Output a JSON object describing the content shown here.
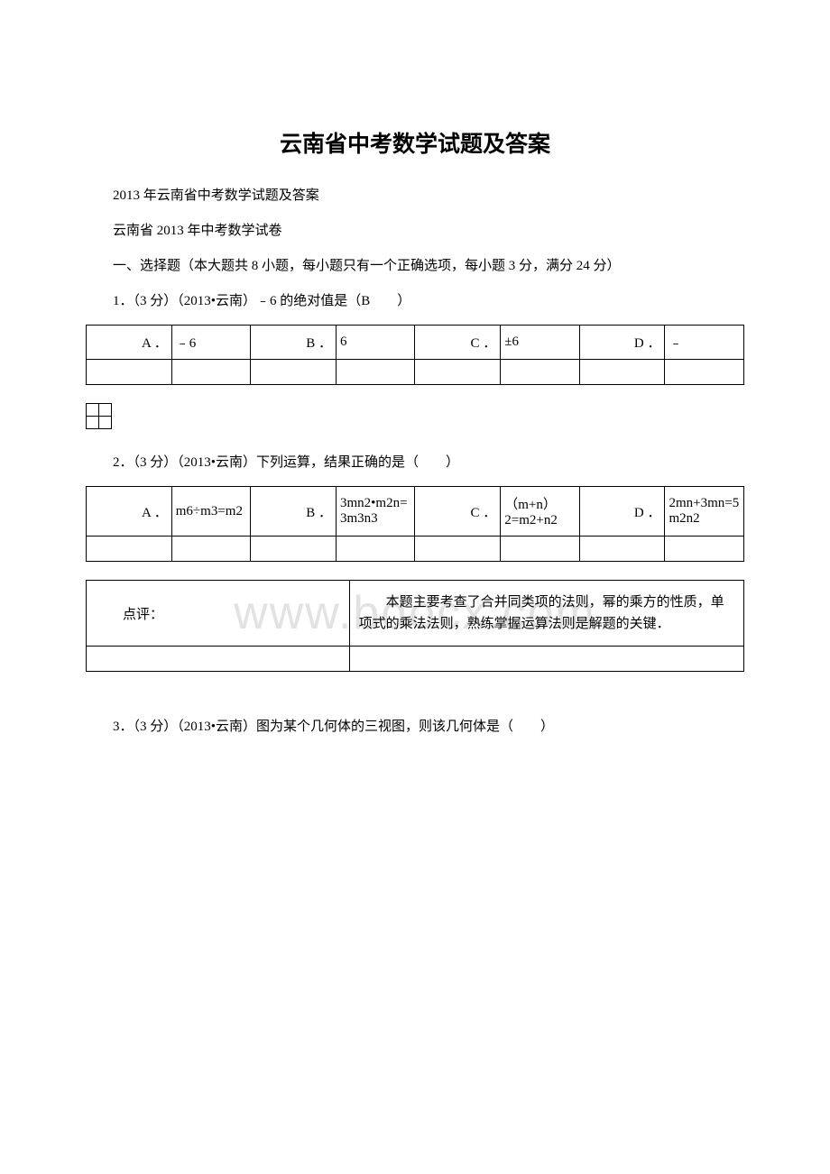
{
  "colors": {
    "text": "#000000",
    "background": "#ffffff",
    "border": "#000000",
    "watermark": "#e2e2e2"
  },
  "typography": {
    "title_fontsize": 25,
    "body_fontsize": 15,
    "watermark_fontsize": 52,
    "font_family": "SimSun"
  },
  "watermark": "www.bdocx.com",
  "title": "云南省中考数学试题及答案",
  "p1": "2013 年云南省中考数学试题及答案",
  "p2": "云南省 2013 年中考数学试卷",
  "p3": "一、选择题（本大题共 8 小题，每小题只有一个正确选项，每小题 3 分，满分 24 分）",
  "q1": "1．（3 分）（2013•云南）﹣6 的绝对值是（B　　）",
  "table1": {
    "labels": [
      "A ．",
      "B ．",
      "C ．",
      "D ．"
    ],
    "values": [
      "﹣6",
      "6",
      "±6",
      "﹣"
    ]
  },
  "q2": "2．（3 分）（2013•云南）下列运算，结果正确的是（　　）",
  "table2": {
    "labels": [
      "A ．",
      "B ．",
      "C ．",
      "D ．"
    ],
    "values": [
      "m6÷m3=m2",
      "3mn2•m2n=3m3n3",
      "（m+n）2=m2+n2",
      "2mn+3mn=5m2n2"
    ]
  },
  "table3": {
    "left": "点评：",
    "right": "本题主要考查了合并同类项的法则，幂的乘方的性质，单项式的乘法法则，熟练掌握运算法则是解题的关键．"
  },
  "q3": "3．（3 分）（2013•云南）图为某个几何体的三视图，则该几何体是（　　）"
}
